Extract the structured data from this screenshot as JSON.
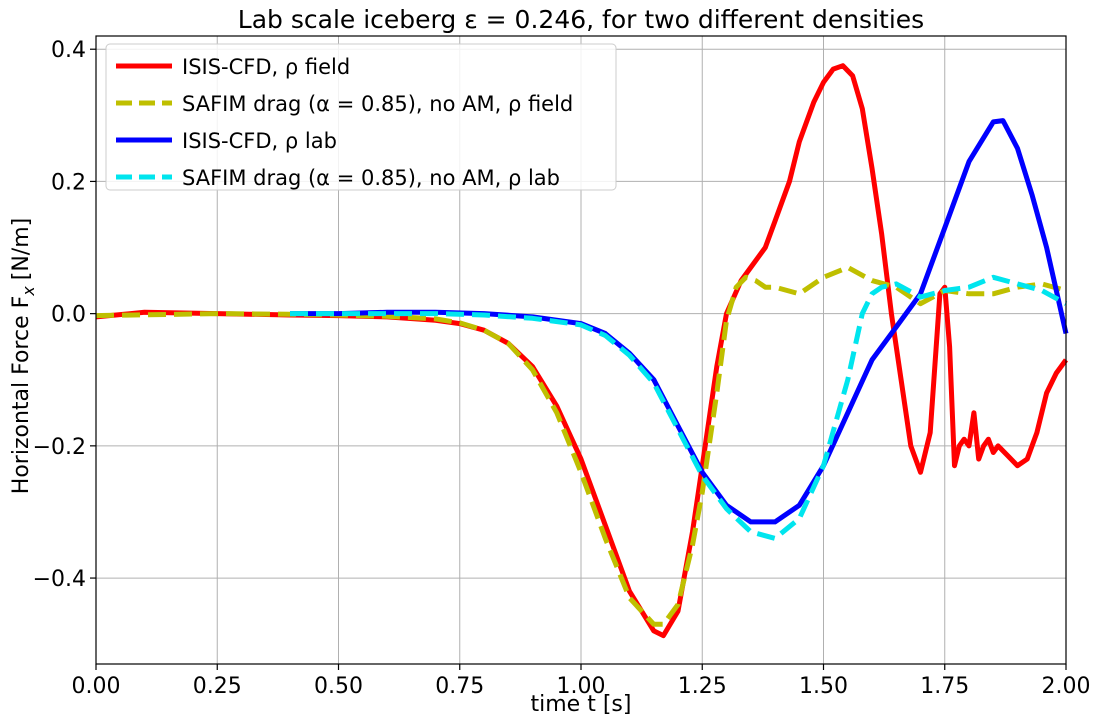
{
  "chart_data": {
    "type": "line",
    "title": "Lab scale iceberg ε = 0.246, for two different densities",
    "xlabel": "time t [s]",
    "ylabel": "Horizontal Force F",
    "ylabel_sub": "x",
    "ylabel_unit": "[N/m]",
    "xlim": [
      0,
      2
    ],
    "ylim": [
      -0.53,
      0.42
    ],
    "xticks": [
      0,
      0.25,
      0.5,
      0.75,
      1.0,
      1.25,
      1.5,
      1.75,
      2.0
    ],
    "xtick_labels": [
      "0.00",
      "0.25",
      "0.50",
      "0.75",
      "1.00",
      "1.25",
      "1.50",
      "1.75",
      "2.00"
    ],
    "yticks": [
      -0.4,
      -0.2,
      0.0,
      0.2,
      0.4
    ],
    "ytick_labels": [
      "−0.4",
      "−0.2",
      "0.0",
      "0.2",
      "0.4"
    ],
    "grid": true,
    "legend_position": "top-left",
    "series": [
      {
        "name": "ISIS-CFD, ρ field",
        "color": "#ff0000",
        "style": "solid",
        "x": [
          0.0,
          0.1,
          0.25,
          0.4,
          0.5,
          0.6,
          0.7,
          0.75,
          0.8,
          0.85,
          0.9,
          0.95,
          1.0,
          1.05,
          1.1,
          1.15,
          1.17,
          1.2,
          1.23,
          1.25,
          1.28,
          1.3,
          1.33,
          1.35,
          1.38,
          1.4,
          1.43,
          1.45,
          1.48,
          1.5,
          1.52,
          1.54,
          1.56,
          1.58,
          1.6,
          1.62,
          1.64,
          1.66,
          1.68,
          1.7,
          1.72,
          1.74,
          1.75,
          1.76,
          1.77,
          1.78,
          1.79,
          1.8,
          1.81,
          1.82,
          1.83,
          1.84,
          1.85,
          1.86,
          1.88,
          1.9,
          1.92,
          1.94,
          1.96,
          1.98,
          2.0
        ],
        "y": [
          -0.005,
          0.002,
          0.0,
          -0.002,
          -0.003,
          -0.005,
          -0.01,
          -0.015,
          -0.025,
          -0.045,
          -0.08,
          -0.14,
          -0.22,
          -0.32,
          -0.42,
          -0.48,
          -0.487,
          -0.45,
          -0.33,
          -0.23,
          -0.08,
          0.0,
          0.05,
          0.07,
          0.1,
          0.14,
          0.2,
          0.26,
          0.32,
          0.35,
          0.37,
          0.375,
          0.36,
          0.31,
          0.22,
          0.12,
          0.0,
          -0.1,
          -0.2,
          -0.24,
          -0.18,
          0.03,
          0.04,
          -0.05,
          -0.23,
          -0.2,
          -0.19,
          -0.2,
          -0.15,
          -0.22,
          -0.2,
          -0.19,
          -0.21,
          -0.2,
          -0.215,
          -0.23,
          -0.22,
          -0.18,
          -0.12,
          -0.09,
          -0.07
        ]
      },
      {
        "name": "SAFIM drag (α = 0.85), no AM, ρ field",
        "color": "#bfbf00",
        "style": "dashed",
        "x": [
          0.0,
          0.25,
          0.4,
          0.5,
          0.6,
          0.7,
          0.75,
          0.8,
          0.85,
          0.9,
          0.95,
          1.0,
          1.05,
          1.1,
          1.15,
          1.17,
          1.2,
          1.23,
          1.25,
          1.28,
          1.3,
          1.32,
          1.34,
          1.36,
          1.38,
          1.4,
          1.45,
          1.5,
          1.55,
          1.6,
          1.65,
          1.7,
          1.75,
          1.8,
          1.85,
          1.9,
          1.95,
          2.0
        ],
        "y": [
          -0.003,
          0.0,
          -0.001,
          -0.002,
          -0.004,
          -0.008,
          -0.014,
          -0.025,
          -0.045,
          -0.085,
          -0.15,
          -0.24,
          -0.34,
          -0.43,
          -0.47,
          -0.47,
          -0.44,
          -0.35,
          -0.27,
          -0.12,
          -0.01,
          0.04,
          0.055,
          0.05,
          0.04,
          0.04,
          0.03,
          0.055,
          0.07,
          0.05,
          0.04,
          0.015,
          0.035,
          0.03,
          0.03,
          0.04,
          0.045,
          0.035
        ]
      },
      {
        "name": "ISIS-CFD, ρ lab",
        "color": "#0000ff",
        "style": "solid",
        "x": [
          0.4,
          0.5,
          0.6,
          0.7,
          0.8,
          0.9,
          1.0,
          1.05,
          1.1,
          1.15,
          1.2,
          1.25,
          1.3,
          1.35,
          1.4,
          1.45,
          1.5,
          1.55,
          1.6,
          1.65,
          1.7,
          1.75,
          1.8,
          1.85,
          1.87,
          1.9,
          1.93,
          1.96,
          2.0
        ],
        "y": [
          0.0,
          0.0,
          0.002,
          0.002,
          0.0,
          -0.005,
          -0.015,
          -0.03,
          -0.06,
          -0.1,
          -0.17,
          -0.24,
          -0.29,
          -0.315,
          -0.315,
          -0.29,
          -0.23,
          -0.15,
          -0.07,
          -0.02,
          0.03,
          0.13,
          0.23,
          0.29,
          0.292,
          0.25,
          0.18,
          0.1,
          -0.03
        ]
      },
      {
        "name": "SAFIM drag (α = 0.85), no AM, ρ lab",
        "color": "#00e5ee",
        "style": "dashed",
        "x": [
          0.4,
          0.5,
          0.6,
          0.7,
          0.8,
          0.9,
          1.0,
          1.05,
          1.1,
          1.15,
          1.2,
          1.25,
          1.3,
          1.35,
          1.4,
          1.45,
          1.5,
          1.55,
          1.58,
          1.6,
          1.62,
          1.65,
          1.7,
          1.75,
          1.8,
          1.85,
          1.9,
          1.95,
          2.0
        ],
        "y": [
          0.0,
          0.0,
          0.0,
          0.0,
          -0.002,
          -0.007,
          -0.017,
          -0.033,
          -0.063,
          -0.105,
          -0.175,
          -0.245,
          -0.295,
          -0.33,
          -0.34,
          -0.31,
          -0.23,
          -0.1,
          0.0,
          0.03,
          0.04,
          0.045,
          0.025,
          0.035,
          0.04,
          0.055,
          0.045,
          0.035,
          0.015
        ]
      }
    ]
  }
}
